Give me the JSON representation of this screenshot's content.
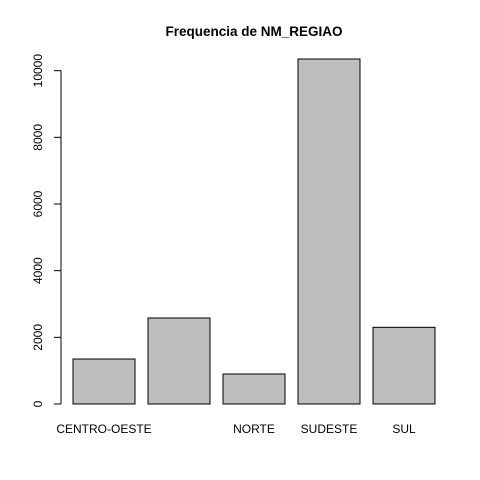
{
  "chart_data": {
    "type": "bar",
    "title": "Frequencia de NM_REGIAO",
    "xlabel": "",
    "ylabel": "",
    "categories": [
      "CENTRO-OESTE",
      "",
      "NORTE",
      "SUDESTE",
      "SUL"
    ],
    "values": [
      1350,
      2580,
      900,
      10350,
      2300
    ],
    "ylim": [
      0,
      10350
    ],
    "yticks": [
      0,
      2000,
      4000,
      6000,
      8000,
      10000
    ],
    "grid": false,
    "legend": "none",
    "colors": {
      "bar_fill": "#bebebe",
      "bar_stroke": "#000000",
      "axis": "#000000"
    }
  }
}
